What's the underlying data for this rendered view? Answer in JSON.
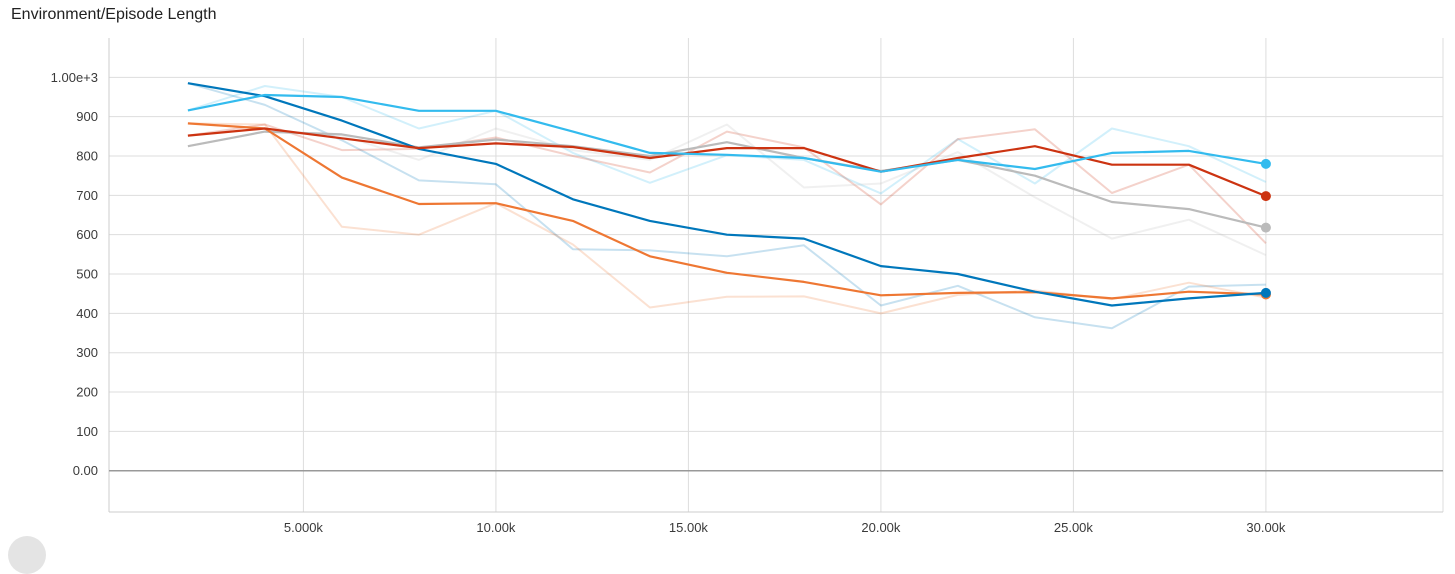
{
  "chart_data": {
    "type": "line",
    "title": "Environment/Episode Length",
    "xlabel": "",
    "ylabel": "",
    "xlim": [
      -50,
      34600
    ],
    "ylim": [
      -105,
      1100
    ],
    "grid": true,
    "x_ticks": [
      {
        "value": 5000,
        "label": "5.000k"
      },
      {
        "value": 10000,
        "label": "10.00k"
      },
      {
        "value": 15000,
        "label": "15.00k"
      },
      {
        "value": 20000,
        "label": "20.00k"
      },
      {
        "value": 25000,
        "label": "25.00k"
      },
      {
        "value": 30000,
        "label": "30.00k"
      }
    ],
    "y_ticks": [
      {
        "value": 0,
        "label": "0.00"
      },
      {
        "value": 100,
        "label": "100"
      },
      {
        "value": 200,
        "label": "200"
      },
      {
        "value": 300,
        "label": "300"
      },
      {
        "value": 400,
        "label": "400"
      },
      {
        "value": 500,
        "label": "500"
      },
      {
        "value": 600,
        "label": "600"
      },
      {
        "value": 700,
        "label": "700"
      },
      {
        "value": 800,
        "label": "800"
      },
      {
        "value": 900,
        "label": "900"
      },
      {
        "value": 1000,
        "label": "1.00e+3"
      }
    ],
    "x": [
      2000,
      4000,
      6000,
      8000,
      10000,
      12000,
      14000,
      16000,
      18000,
      20000,
      22000,
      24000,
      26000,
      28000,
      30000
    ],
    "series": [
      {
        "color": "#0077bb",
        "smoothed": [
          985,
          952,
          890,
          818,
          780,
          690,
          635,
          600,
          590,
          520,
          500,
          455,
          420,
          438,
          452
        ],
        "raw": [
          985,
          930,
          840,
          738,
          728,
          563,
          560,
          545,
          573,
          420,
          470,
          390,
          362,
          468,
          473
        ]
      },
      {
        "color": "#33bbee",
        "smoothed": [
          916,
          955,
          950,
          915,
          915,
          862,
          808,
          803,
          795,
          760,
          790,
          767,
          808,
          813,
          780
        ],
        "raw": [
          916,
          978,
          950,
          870,
          915,
          808,
          732,
          802,
          790,
          705,
          843,
          730,
          870,
          825,
          734
        ]
      },
      {
        "color": "#ee7733",
        "smoothed": [
          883,
          870,
          745,
          678,
          680,
          635,
          545,
          503,
          480,
          446,
          452,
          454,
          438,
          455,
          448
        ],
        "raw": [
          883,
          880,
          620,
          600,
          680,
          575,
          415,
          442,
          443,
          400,
          447,
          458,
          436,
          478,
          440
        ]
      },
      {
        "color": "#cc3311",
        "smoothed": [
          852,
          870,
          845,
          820,
          832,
          823,
          795,
          820,
          820,
          760,
          795,
          825,
          778,
          778,
          698
        ],
        "raw": [
          852,
          880,
          815,
          818,
          847,
          800,
          758,
          862,
          822,
          677,
          843,
          868,
          706,
          778,
          578
        ]
      },
      {
        "color": "#bbbbbb",
        "smoothed": [
          825,
          862,
          855,
          822,
          842,
          825,
          800,
          835,
          795,
          762,
          790,
          750,
          683,
          665,
          618
        ],
        "raw": [
          825,
          862,
          852,
          790,
          870,
          815,
          790,
          880,
          720,
          730,
          810,
          695,
          590,
          638,
          548
        ]
      }
    ]
  }
}
